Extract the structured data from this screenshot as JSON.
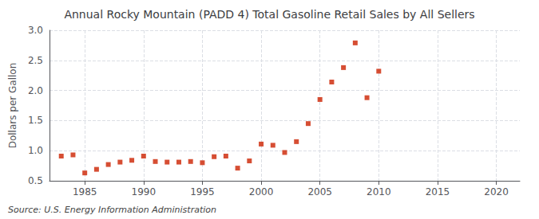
{
  "chart_data": {
    "type": "scatter",
    "title": "Annual Rocky Mountain (PADD 4) Total Gasoline Retail Sales by All Sellers",
    "ylabel": "Dollars per Gallon",
    "source": "Source: U.S. Energy Information Administration",
    "x": [
      1983,
      1984,
      1985,
      1986,
      1987,
      1988,
      1989,
      1990,
      1991,
      1992,
      1993,
      1994,
      1995,
      1996,
      1997,
      1998,
      1999,
      2000,
      2001,
      2002,
      2003,
      2004,
      2005,
      2006,
      2007,
      2008,
      2009,
      2010
    ],
    "values": [
      0.91,
      0.93,
      0.63,
      0.69,
      0.77,
      0.81,
      0.84,
      0.91,
      0.82,
      0.81,
      0.81,
      0.82,
      0.8,
      0.9,
      0.91,
      0.71,
      0.83,
      1.11,
      1.09,
      0.97,
      1.15,
      1.45,
      1.85,
      2.14,
      2.38,
      2.79,
      1.88,
      2.32
    ],
    "color": "#cc2200",
    "marker": "square",
    "xlim": [
      1982,
      2022
    ],
    "ylim": [
      0.5,
      3.0
    ],
    "xticks": [
      1985,
      1990,
      1995,
      2000,
      2005,
      2010,
      2015,
      2020
    ],
    "yticks": [
      0.5,
      {
        "value": 1,
        "label": "1.0"
      },
      1.5,
      {
        "value": 2,
        "label": "2.0"
      },
      2.5,
      {
        "value": 3,
        "label": "3.0"
      }
    ],
    "grid": true
  }
}
